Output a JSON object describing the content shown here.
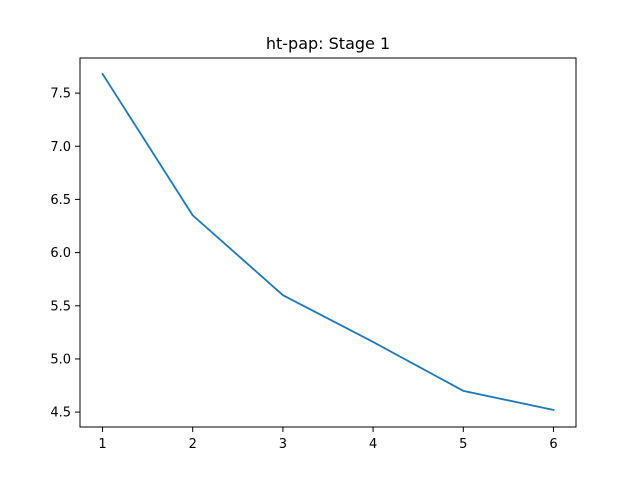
{
  "chart_data": {
    "type": "line",
    "title": "ht-pap: Stage 1",
    "xlabel": "",
    "ylabel": "",
    "x": [
      1,
      2,
      3,
      4,
      5,
      6
    ],
    "series": [
      {
        "values": [
          7.68,
          6.35,
          5.6,
          5.16,
          4.7,
          4.52
        ],
        "color": "#1f77b4"
      }
    ],
    "xlim": [
      0.75,
      6.25
    ],
    "ylim": [
      4.36,
      7.83
    ],
    "xticks": [
      1,
      2,
      3,
      4,
      5,
      6
    ],
    "xtick_labels": [
      "1",
      "2",
      "3",
      "4",
      "5",
      "6"
    ],
    "yticks": [
      4.5,
      5.0,
      5.5,
      6.0,
      6.5,
      7.0,
      7.5
    ],
    "ytick_labels": [
      "4.5",
      "5.0",
      "5.5",
      "6.0",
      "6.5",
      "7.0",
      "7.5"
    ],
    "grid": false,
    "legend": false
  }
}
